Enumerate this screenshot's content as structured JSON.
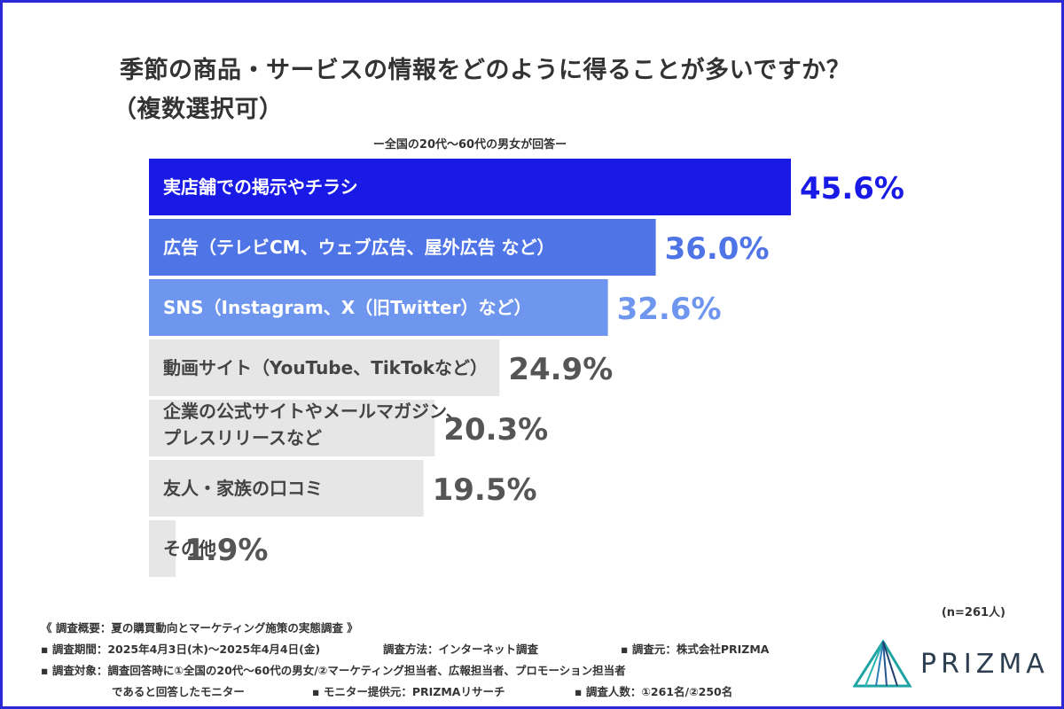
{
  "title_line1": "季節の商品・サービスの情報をどのように得ることが多いですか？",
  "title_line2": "（複数選択可）",
  "subtitle": "ー全国の20代〜60代の男女が回答ー",
  "sample_size": "(n=261人)",
  "chart_data": {
    "type": "bar",
    "orientation": "horizontal",
    "xlim": [
      0,
      50
    ],
    "unit": "%",
    "categories": [
      [
        "実店舗での掲示やチラシ"
      ],
      [
        "広告（テレビCM、ウェブ広告、屋外広告 など）"
      ],
      [
        "SNS（Instagram、X（旧Twitter）など）"
      ],
      [
        "動画サイト（YouTube、TikTokなど）"
      ],
      [
        "企業の公式サイトやメールマガジン、",
        "プレスリリースなど"
      ],
      [
        "友人・家族の口コミ"
      ],
      [
        "その他"
      ]
    ],
    "values": [
      45.6,
      36.0,
      32.6,
      24.9,
      20.3,
      19.5,
      1.9
    ],
    "value_labels": [
      "45.6%",
      "36.0%",
      "32.6%",
      "24.9%",
      "20.3%",
      "19.5%",
      "1.9%"
    ],
    "bar_colors": [
      "#1a1ae6",
      "#4f74e6",
      "#6f96ee",
      "#e6e6e6",
      "#e6e6e6",
      "#e6e6e6",
      "#e6e6e6"
    ],
    "label_colors": [
      "#ffffff",
      "#ffffff",
      "#ffffff",
      "#444444",
      "#444444",
      "#444444",
      "#444444"
    ],
    "value_colors": [
      "#1a1ae6",
      "#4f74e6",
      "#6f96ee",
      "#555555",
      "#555555",
      "#555555",
      "#555555"
    ]
  },
  "footer": {
    "overview": "《 調査概要：夏の購買動向とマーケティング施策の実態調査 》",
    "period": "▪ 調査期間：2025年4月3日(木)〜2025年4月4日(金)",
    "method": "調査方法：インターネット調査",
    "source": "▪ 調査元：株式会社PRIZMA",
    "target_line1": "▪ 調査対象：調査回答時に①全国の20代〜60代の男女/②マーケティング担当者、広報担当者、プロモーション担当者",
    "target_line2": "であると回答したモニター",
    "provider": "▪ モニター提供元：PRIZMAリサーチ",
    "count": "▪ 調査人数：①261名/②250名"
  },
  "logo": {
    "text": "PRIZMA",
    "icon": "prism-triangle-icon"
  }
}
